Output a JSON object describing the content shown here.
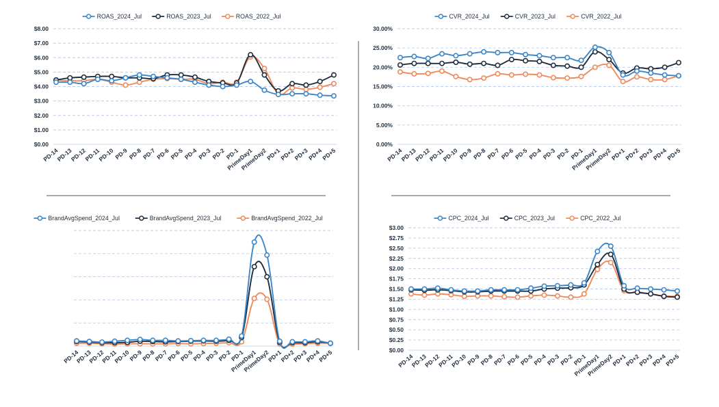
{
  "colors": {
    "s2024": "#3a86c8",
    "s2023": "#1f2d3d",
    "s2022": "#ef8a5b",
    "grid": "#b9cde8",
    "divider": "#555555",
    "axis": "#cfd8e3"
  },
  "categories": [
    "PD-14",
    "PD-13",
    "PD-12",
    "PD-11",
    "PD-10",
    "PD-9",
    "PD-8",
    "PD-7",
    "PD-6",
    "PD-5",
    "PD-4",
    "PD-3",
    "PD-2",
    "PD-1",
    "PrimeDay1",
    "PrimeDay2",
    "PD+1",
    "PD+2",
    "PD+3",
    "PD+4",
    "PD+5"
  ],
  "chart_data": [
    {
      "type": "line",
      "id": "roas",
      "title": "",
      "xlabel": "",
      "ylabel": "",
      "ylim": [
        0,
        8
      ],
      "ytick_labels": [
        "$0.00",
        "$1.00",
        "$2.00",
        "$3.00",
        "$4.00",
        "$5.00",
        "$6.00",
        "$7.00",
        "$8.00"
      ],
      "grid": true,
      "series": [
        {
          "name": "ROAS_2024_Jul",
          "values": [
            4.3,
            4.3,
            4.2,
            4.5,
            4.4,
            4.6,
            4.8,
            4.7,
            4.6,
            4.5,
            4.3,
            4.1,
            4.0,
            4.1,
            4.35,
            3.75,
            3.45,
            3.5,
            3.5,
            3.4,
            3.35
          ]
        },
        {
          "name": "ROAS_2023_Jul",
          "values": [
            4.45,
            4.6,
            4.65,
            4.7,
            4.7,
            4.6,
            4.6,
            4.55,
            4.8,
            4.8,
            4.65,
            4.35,
            4.25,
            4.25,
            6.2,
            4.8,
            3.7,
            4.2,
            4.1,
            4.35,
            4.8
          ]
        },
        {
          "name": "ROAS_2022_Jul",
          "values": [
            4.45,
            4.4,
            4.4,
            4.5,
            4.3,
            4.1,
            4.3,
            4.5,
            4.55,
            4.5,
            4.5,
            4.2,
            4.3,
            4.3,
            6.05,
            5.25,
            3.5,
            3.9,
            3.8,
            3.95,
            4.2
          ]
        }
      ]
    },
    {
      "type": "line",
      "id": "cvr",
      "title": "",
      "xlabel": "",
      "ylabel": "",
      "ylim": [
        0,
        30
      ],
      "ytick_labels": [
        "0.00%",
        "5.00%",
        "10.00%",
        "15.00%",
        "20.00%",
        "25.00%",
        "30.00%"
      ],
      "grid": true,
      "series": [
        {
          "name": "CVR_2024_Jul",
          "values": [
            22.5,
            22.8,
            22.3,
            23.5,
            23.0,
            23.5,
            24.0,
            23.8,
            23.8,
            23.3,
            23.0,
            22.5,
            22.5,
            21.8,
            25.2,
            23.8,
            18.0,
            19.0,
            18.5,
            18.0,
            17.8
          ]
        },
        {
          "name": "CVR_2023_Jul",
          "values": [
            20.6,
            21.0,
            21.0,
            21.0,
            21.3,
            20.8,
            21.0,
            20.5,
            22.0,
            21.7,
            21.5,
            20.5,
            20.3,
            20.0,
            24.0,
            22.0,
            18.5,
            19.8,
            19.6,
            20.0,
            21.2
          ]
        },
        {
          "name": "CVR_2022_Jul",
          "values": [
            18.8,
            18.3,
            18.4,
            19.0,
            17.6,
            16.8,
            17.2,
            18.3,
            18.0,
            18.2,
            18.0,
            17.3,
            17.2,
            17.6,
            20.0,
            20.5,
            16.3,
            17.5,
            16.8,
            16.8,
            17.8
          ]
        }
      ]
    },
    {
      "type": "line",
      "id": "brandavgspend",
      "title": "",
      "xlabel": "",
      "ylabel": "",
      "ylim": [
        0,
        4
      ],
      "ytick_labels": [],
      "grid": true,
      "series": [
        {
          "name": "BrandAvgSpend_2024_Jul",
          "values": [
            0.18,
            0.16,
            0.14,
            0.17,
            0.2,
            0.23,
            0.2,
            0.2,
            0.18,
            0.19,
            0.2,
            0.2,
            0.24,
            0.35,
            3.6,
            3.15,
            0.17,
            0.15,
            0.15,
            0.18,
            0.1
          ]
        },
        {
          "name": "BrandAvgSpend_2023_Jul",
          "values": [
            0.16,
            0.14,
            0.12,
            0.12,
            0.13,
            0.17,
            0.16,
            0.15,
            0.16,
            0.17,
            0.18,
            0.17,
            0.2,
            0.3,
            2.75,
            2.4,
            0.13,
            0.12,
            0.12,
            0.15,
            0.1
          ]
        },
        {
          "name": "BrandAvgSpend_2022_Jul",
          "values": [
            0.1,
            0.1,
            0.08,
            0.07,
            0.08,
            0.08,
            0.08,
            0.08,
            0.09,
            0.08,
            0.09,
            0.1,
            0.12,
            0.15,
            1.65,
            1.62,
            0.08,
            0.07,
            0.08,
            0.1,
            0.1
          ]
        }
      ]
    },
    {
      "type": "line",
      "id": "cpc",
      "title": "",
      "xlabel": "",
      "ylabel": "",
      "ylim": [
        0,
        3
      ],
      "ytick_labels": [
        "$0.00",
        "$0.25",
        "$0.50",
        "$0.75",
        "$1.00",
        "$1.25",
        "$1.50",
        "$1.75",
        "$2.00",
        "$2.25",
        "$2.50",
        "$2.75",
        "$3.00"
      ],
      "grid": true,
      "series": [
        {
          "name": "CPC_2024_Jul",
          "values": [
            1.5,
            1.5,
            1.52,
            1.48,
            1.45,
            1.45,
            1.48,
            1.48,
            1.48,
            1.52,
            1.57,
            1.58,
            1.6,
            1.65,
            2.42,
            2.55,
            1.58,
            1.52,
            1.5,
            1.48,
            1.45
          ]
        },
        {
          "name": "CPC_2023_Jul",
          "values": [
            1.48,
            1.47,
            1.48,
            1.46,
            1.43,
            1.43,
            1.45,
            1.45,
            1.45,
            1.45,
            1.5,
            1.52,
            1.53,
            1.6,
            2.1,
            2.35,
            1.5,
            1.42,
            1.38,
            1.32,
            1.3
          ]
        },
        {
          "name": "CPC_2022_Jul",
          "values": [
            1.38,
            1.35,
            1.38,
            1.36,
            1.32,
            1.33,
            1.33,
            1.31,
            1.3,
            1.33,
            1.35,
            1.33,
            1.3,
            1.38,
            1.98,
            2.15,
            1.46,
            1.43,
            1.38,
            1.33,
            1.32
          ]
        }
      ]
    }
  ]
}
